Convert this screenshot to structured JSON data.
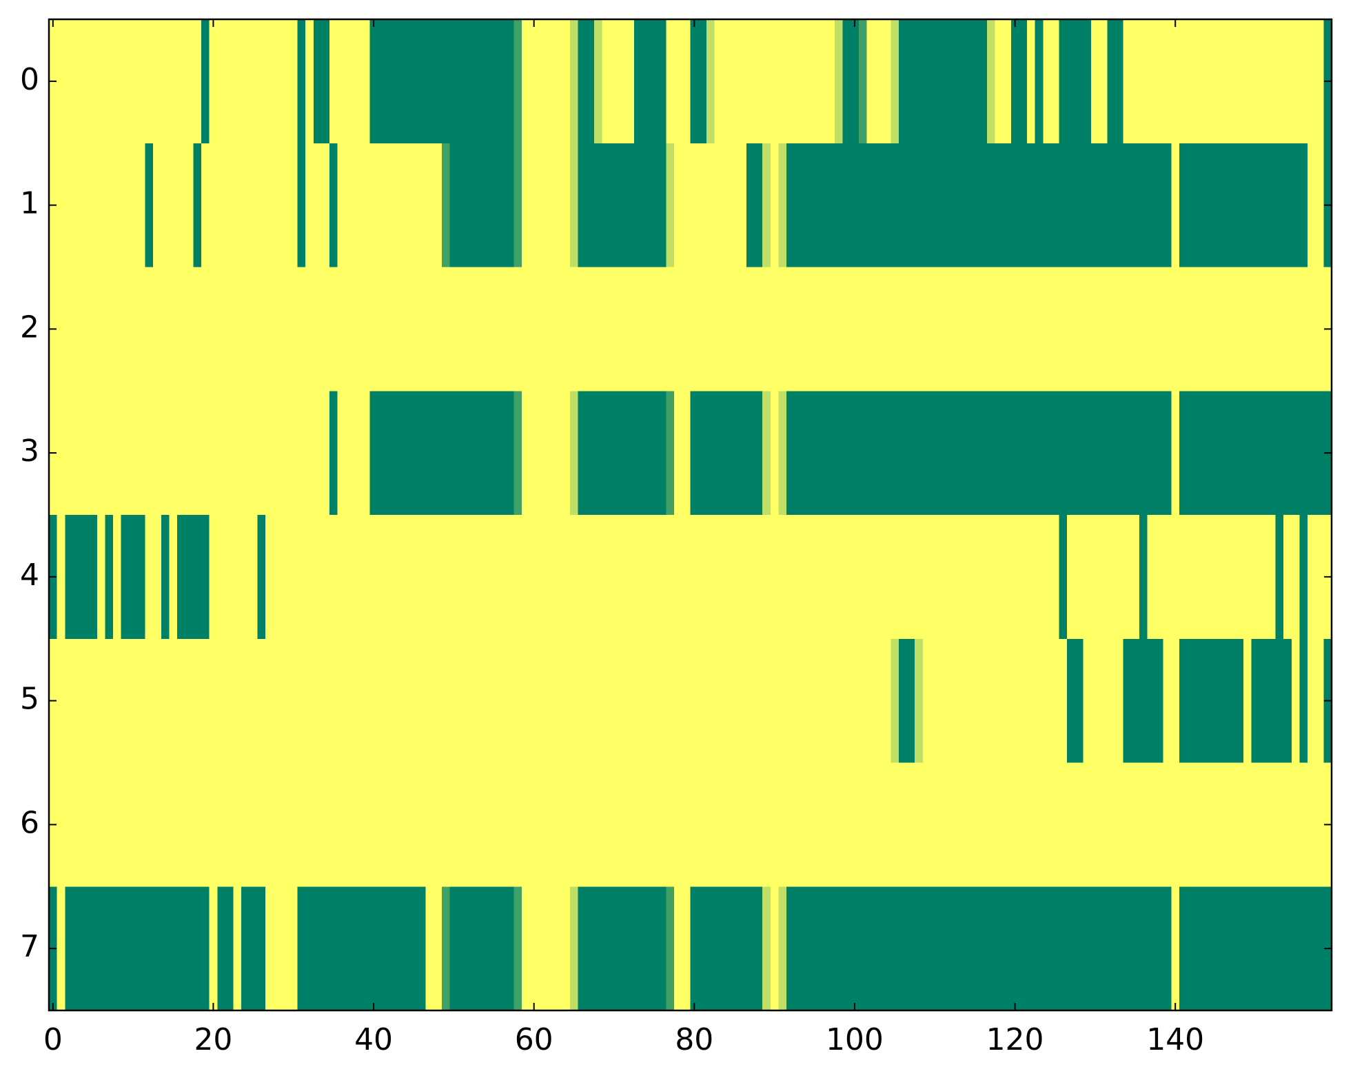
{
  "chart_data": {
    "type": "heatmap",
    "colors": [
      "#008066",
      "#ffff66"
    ],
    "xlim": [
      -0.5,
      159.5
    ],
    "ylim": [
      7.5,
      -0.5
    ],
    "xticks": [
      0,
      20,
      40,
      60,
      80,
      100,
      120,
      140
    ],
    "yticks": [
      0,
      1,
      2,
      3,
      4,
      5,
      6,
      7
    ],
    "values": [
      [
        1,
        1,
        1,
        1,
        1,
        1,
        1,
        1,
        1,
        1,
        1,
        1,
        1,
        1,
        1,
        1,
        1,
        1,
        1,
        0,
        1,
        1,
        1,
        1,
        1,
        1,
        1,
        1,
        1,
        1,
        1,
        0,
        1,
        0,
        0,
        1,
        1,
        1,
        1,
        1,
        0,
        0,
        0,
        0,
        0,
        0,
        0,
        0,
        0,
        0,
        0,
        0,
        0,
        0,
        0,
        0,
        0,
        0,
        0.25,
        1,
        1,
        1,
        1,
        1,
        1,
        0.75,
        0,
        0,
        0.75,
        1,
        1,
        1,
        1,
        0,
        0,
        0,
        0,
        1,
        1,
        1,
        0,
        0,
        0.75,
        1,
        1,
        1,
        1,
        1,
        1,
        1,
        1,
        1,
        1,
        1,
        1,
        1,
        1,
        1,
        0.75,
        0,
        0,
        0.25,
        1,
        1,
        1,
        0.75,
        0,
        0,
        0,
        0,
        0,
        0,
        0,
        0,
        0,
        0,
        0,
        0.75,
        1,
        1,
        0,
        0,
        1,
        0,
        1,
        1,
        0,
        0,
        0,
        0,
        1,
        1,
        0,
        0,
        1,
        1,
        1,
        1,
        1,
        1,
        1,
        1,
        1,
        1,
        1,
        1,
        1,
        1,
        1,
        1,
        1,
        1,
        1,
        1,
        1,
        1,
        1,
        1,
        1,
        0
      ],
      [
        1,
        1,
        1,
        1,
        1,
        1,
        1,
        1,
        1,
        1,
        1,
        1,
        0,
        1,
        1,
        1,
        1,
        1,
        0,
        1,
        1,
        1,
        1,
        1,
        1,
        1,
        1,
        1,
        1,
        1,
        1,
        0,
        1,
        1,
        1,
        0,
        1,
        1,
        1,
        1,
        1,
        1,
        1,
        1,
        1,
        1,
        1,
        1,
        1,
        0.25,
        0,
        0,
        0,
        0,
        0,
        0,
        0,
        0,
        0.25,
        1,
        1,
        1,
        1,
        1,
        1,
        0.75,
        0,
        0,
        0,
        0,
        0,
        0,
        0,
        0,
        0,
        0,
        0,
        0.75,
        1,
        1,
        1,
        1,
        1,
        1,
        1,
        1,
        1,
        0,
        0,
        0.75,
        1,
        0.75,
        0,
        0,
        0,
        0,
        0,
        0,
        0,
        0,
        0,
        0,
        0,
        0,
        0,
        0,
        0,
        0,
        0,
        0,
        0,
        0,
        0,
        0,
        0,
        0,
        0,
        0,
        0,
        0,
        0,
        0,
        0,
        0,
        0,
        0,
        0,
        0,
        0,
        0,
        0,
        0,
        0,
        0,
        0,
        0,
        0,
        0,
        0,
        0,
        1,
        0,
        0,
        0,
        0,
        0,
        0,
        0,
        0,
        0,
        0,
        0,
        0,
        0,
        0,
        0,
        0,
        1,
        1,
        0
      ],
      [
        1,
        1,
        1,
        1,
        1,
        1,
        1,
        1,
        1,
        1,
        1,
        1,
        1,
        1,
        1,
        1,
        1,
        1,
        1,
        1,
        1,
        1,
        1,
        1,
        1,
        1,
        1,
        1,
        1,
        1,
        1,
        1,
        1,
        1,
        1,
        1,
        1,
        1,
        1,
        1,
        1,
        1,
        1,
        1,
        1,
        1,
        1,
        1,
        1,
        1,
        1,
        1,
        1,
        1,
        1,
        1,
        1,
        1,
        1,
        1,
        1,
        1,
        1,
        1,
        1,
        1,
        1,
        1,
        1,
        1,
        1,
        1,
        1,
        1,
        1,
        1,
        1,
        1,
        1,
        1,
        1,
        1,
        1,
        1,
        1,
        1,
        1,
        1,
        1,
        1,
        1,
        1,
        1,
        1,
        1,
        1,
        1,
        1,
        1,
        1,
        1,
        1,
        1,
        1,
        1,
        1,
        1,
        1,
        1,
        1,
        1,
        1,
        1,
        1,
        1,
        1,
        1,
        1,
        1,
        1,
        1,
        1,
        1,
        1,
        1,
        1,
        1,
        1,
        1,
        1,
        1,
        1,
        1,
        1,
        1,
        1,
        1,
        1,
        1,
        1,
        1,
        1,
        1,
        1,
        1,
        1,
        1,
        1,
        1,
        1,
        1,
        1,
        1,
        1,
        1,
        1,
        1,
        1,
        1,
        1
      ],
      [
        1,
        1,
        1,
        1,
        1,
        1,
        1,
        1,
        1,
        1,
        1,
        1,
        1,
        1,
        1,
        1,
        1,
        1,
        1,
        1,
        1,
        1,
        1,
        1,
        1,
        1,
        1,
        1,
        1,
        1,
        1,
        1,
        1,
        1,
        1,
        0,
        1,
        1,
        1,
        1,
        0,
        0,
        0,
        0,
        0,
        0,
        0,
        0,
        0,
        0,
        0,
        0,
        0,
        0,
        0,
        0,
        0,
        0,
        0.25,
        1,
        1,
        1,
        1,
        1,
        1,
        0.75,
        0,
        0,
        0,
        0,
        0,
        0,
        0,
        0,
        0,
        0,
        0,
        0.25,
        1,
        1,
        0,
        0,
        0,
        0,
        0,
        0,
        0,
        0,
        0,
        0.75,
        1,
        0.75,
        0,
        0,
        0,
        0,
        0,
        0,
        0,
        0,
        0,
        0,
        0,
        0,
        0,
        0,
        0,
        0,
        0,
        0,
        0,
        0,
        0,
        0,
        0,
        0,
        0,
        0,
        0,
        0,
        0,
        0,
        0,
        0,
        0,
        0,
        0,
        0,
        0,
        0,
        0,
        0,
        0,
        0,
        0,
        0,
        0,
        0,
        0,
        0,
        1,
        0,
        0,
        0,
        0,
        0,
        0,
        0,
        0,
        0,
        0,
        0,
        0,
        0,
        0,
        0,
        0,
        0,
        0,
        0
      ],
      [
        0,
        1,
        0,
        0,
        0,
        0,
        1,
        0,
        1,
        0,
        0,
        0,
        1,
        1,
        0,
        1,
        0,
        0,
        0,
        0,
        1,
        1,
        1,
        1,
        1,
        1,
        0,
        1,
        1,
        1,
        1,
        1,
        1,
        1,
        1,
        1,
        1,
        1,
        1,
        1,
        1,
        1,
        1,
        1,
        1,
        1,
        1,
        1,
        1,
        1,
        1,
        1,
        1,
        1,
        1,
        1,
        1,
        1,
        1,
        1,
        1,
        1,
        1,
        1,
        1,
        1,
        1,
        1,
        1,
        1,
        1,
        1,
        1,
        1,
        1,
        1,
        1,
        1,
        1,
        1,
        1,
        1,
        1,
        1,
        1,
        1,
        1,
        1,
        1,
        1,
        1,
        1,
        1,
        1,
        1,
        1,
        1,
        1,
        1,
        1,
        1,
        1,
        1,
        1,
        1,
        1,
        1,
        1,
        1,
        1,
        1,
        1,
        1,
        1,
        1,
        1,
        1,
        1,
        1,
        1,
        1,
        1,
        1,
        1,
        1,
        1,
        0,
        1,
        1,
        1,
        1,
        1,
        1,
        1,
        1,
        1,
        0,
        1,
        1,
        1,
        1,
        1,
        1,
        1,
        1,
        1,
        1,
        1,
        1,
        1,
        1,
        1,
        1,
        0,
        1,
        1,
        0,
        1,
        1,
        1
      ],
      [
        1,
        1,
        1,
        1,
        1,
        1,
        1,
        1,
        1,
        1,
        1,
        1,
        1,
        1,
        1,
        1,
        1,
        1,
        1,
        1,
        1,
        1,
        1,
        1,
        1,
        1,
        1,
        1,
        1,
        1,
        1,
        1,
        1,
        1,
        1,
        1,
        1,
        1,
        1,
        1,
        1,
        1,
        1,
        1,
        1,
        1,
        1,
        1,
        1,
        1,
        1,
        1,
        1,
        1,
        1,
        1,
        1,
        1,
        1,
        1,
        1,
        1,
        1,
        1,
        1,
        1,
        1,
        1,
        1,
        1,
        1,
        1,
        1,
        1,
        1,
        1,
        1,
        1,
        1,
        1,
        1,
        1,
        1,
        1,
        1,
        1,
        1,
        1,
        1,
        1,
        1,
        1,
        1,
        1,
        1,
        1,
        1,
        1,
        1,
        1,
        1,
        1,
        1,
        1,
        1,
        0.75,
        0,
        0,
        0.75,
        1,
        1,
        1,
        1,
        1,
        1,
        1,
        1,
        1,
        1,
        1,
        1,
        1,
        1,
        1,
        1,
        1,
        1,
        0,
        0,
        1,
        1,
        1,
        1,
        1,
        0,
        0,
        0,
        0,
        0,
        1,
        1,
        0,
        0,
        0,
        0,
        0,
        0,
        0,
        0,
        1,
        0,
        0,
        0,
        0,
        0,
        1,
        0,
        1,
        1,
        0
      ],
      [
        1,
        1,
        1,
        1,
        1,
        1,
        1,
        1,
        1,
        1,
        1,
        1,
        1,
        1,
        1,
        1,
        1,
        1,
        1,
        1,
        1,
        1,
        1,
        1,
        1,
        1,
        1,
        1,
        1,
        1,
        1,
        1,
        1,
        1,
        1,
        1,
        1,
        1,
        1,
        1,
        1,
        1,
        1,
        1,
        1,
        1,
        1,
        1,
        1,
        1,
        1,
        1,
        1,
        1,
        1,
        1,
        1,
        1,
        1,
        1,
        1,
        1,
        1,
        1,
        1,
        1,
        1,
        1,
        1,
        1,
        1,
        1,
        1,
        1,
        1,
        1,
        1,
        1,
        1,
        1,
        1,
        1,
        1,
        1,
        1,
        1,
        1,
        1,
        1,
        1,
        1,
        1,
        1,
        1,
        1,
        1,
        1,
        1,
        1,
        1,
        1,
        1,
        1,
        1,
        1,
        1,
        1,
        1,
        1,
        1,
        1,
        1,
        1,
        1,
        1,
        1,
        1,
        1,
        1,
        1,
        1,
        1,
        1,
        1,
        1,
        1,
        1,
        1,
        1,
        1,
        1,
        1,
        1,
        1,
        1,
        1,
        1,
        1,
        1,
        1,
        1,
        1,
        1,
        1,
        1,
        1,
        1,
        1,
        1,
        1,
        1,
        1,
        1,
        1,
        1,
        1,
        1,
        1,
        1,
        1
      ],
      [
        0,
        1,
        0,
        0,
        0,
        0,
        0,
        0,
        0,
        0,
        0,
        0,
        0,
        0,
        0,
        0,
        0,
        0,
        0,
        0,
        1,
        0,
        0,
        1,
        0,
        0,
        0,
        1,
        1,
        1,
        1,
        0,
        0,
        0,
        0,
        0,
        0,
        0,
        0,
        0,
        0,
        0,
        0,
        0,
        0,
        0,
        0,
        1,
        1,
        0.25,
        0,
        0,
        0,
        0,
        0,
        0,
        0,
        0,
        0.25,
        1,
        1,
        1,
        1,
        1,
        1,
        0.75,
        0,
        0,
        0,
        0,
        0,
        0,
        0,
        0,
        0,
        0,
        0,
        0.25,
        1,
        1,
        0,
        0,
        0,
        0,
        0,
        0,
        0,
        0,
        0,
        0.75,
        1,
        0.75,
        0,
        0,
        0,
        0,
        0,
        0,
        0,
        0,
        0,
        0,
        0,
        0,
        0,
        0,
        0,
        0,
        0,
        0,
        0,
        0,
        0,
        0,
        0,
        0,
        0,
        0,
        0,
        0,
        0,
        0,
        0,
        0,
        0,
        0,
        0,
        0,
        0,
        0,
        0,
        0,
        0,
        0,
        0,
        0,
        0,
        0,
        0,
        0,
        1,
        0,
        0,
        0,
        0,
        0,
        0,
        0,
        0,
        0,
        0,
        0,
        0,
        0,
        0,
        0,
        0,
        0,
        0,
        0
      ]
    ]
  }
}
